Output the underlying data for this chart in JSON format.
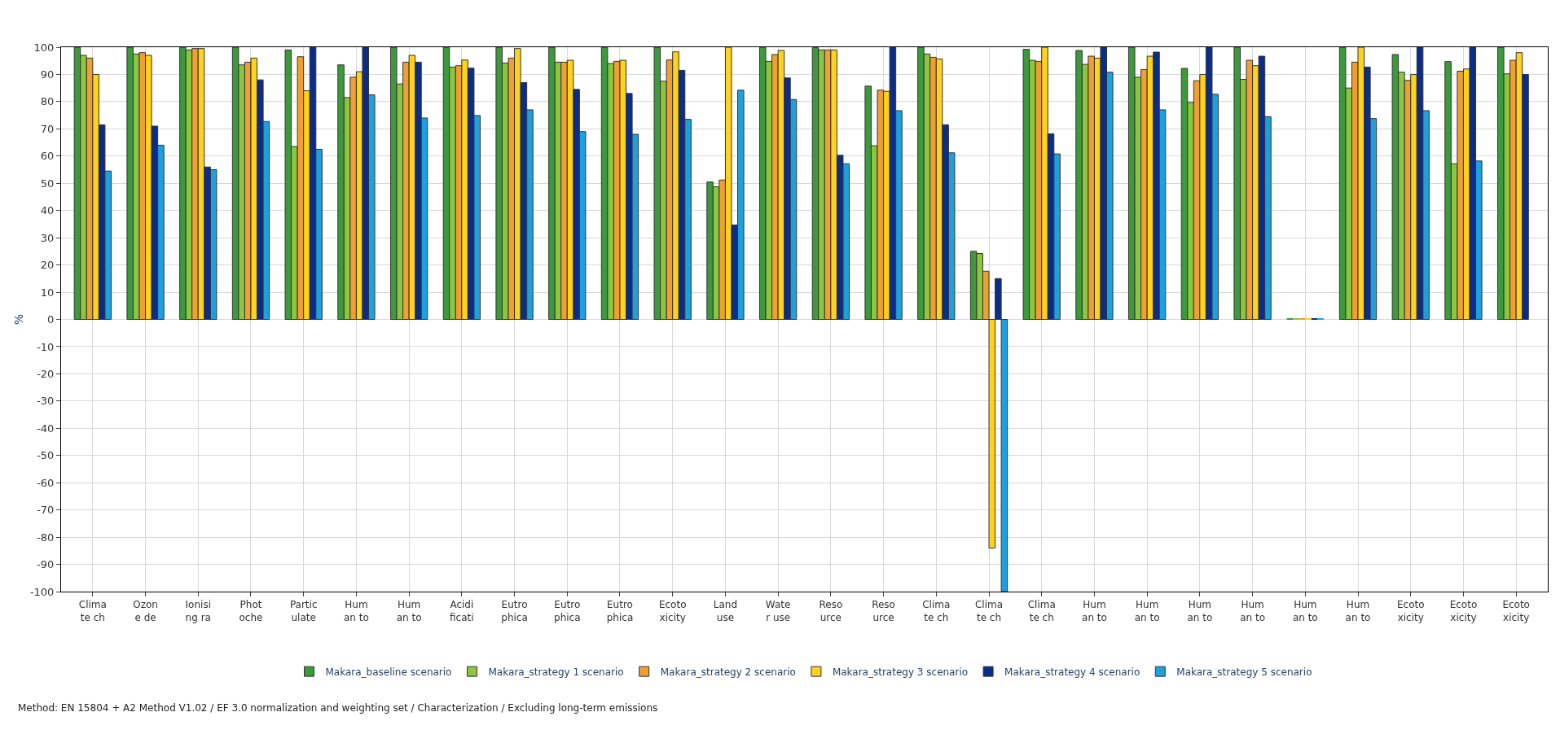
{
  "chart_data": {
    "type": "bar",
    "ylabel": "%",
    "categories": [
      "Clima te ch",
      "Ozon e de",
      "Ionisi ng ra",
      "Phot oche",
      "Partic ulate",
      "Hum an to",
      "Hum an to",
      "Acidi ficati",
      "Eutro phica",
      "Eutro phica",
      "Eutro phica",
      "Ecoto xicity",
      "Land use",
      "Wate r use",
      "Reso urce",
      "Reso urce",
      "Clima te ch",
      "Clima te ch",
      "Clima te ch",
      "Hum an to",
      "Hum an to",
      "Hum an to",
      "Hum an to",
      "Hum an to",
      "Hum an to",
      "Ecoto xicity",
      "Ecoto xicity",
      "Ecoto xicity"
    ],
    "series": [
      {
        "name": "Makara_baseline scenario",
        "color": "#3c9a3c",
        "values": [
          100,
          100,
          100,
          100,
          99,
          93.5,
          100,
          100,
          100,
          100,
          100,
          100,
          50.5,
          100,
          99.8,
          85.7,
          100,
          25,
          99.2,
          98.8,
          100,
          92.2,
          100,
          0.3,
          100,
          97.3,
          94.7,
          100
        ]
      },
      {
        "name": "Makara_strategy 1 scenario",
        "color": "#8cc63f",
        "values": [
          97,
          97.5,
          99,
          93.5,
          63.5,
          81.5,
          86.5,
          92.7,
          94.2,
          94.5,
          94,
          87.5,
          48.7,
          94.8,
          99,
          63.8,
          97.5,
          24.2,
          95.2,
          93.7,
          89,
          79.7,
          88.2,
          0.3,
          85,
          90.8,
          57.2,
          90.2
        ]
      },
      {
        "name": "Makara_strategy 2 scenario",
        "color": "#f0a030",
        "values": [
          96,
          98,
          99.5,
          94.5,
          96.5,
          89,
          94.5,
          93.2,
          96,
          94.5,
          94.8,
          95.3,
          51.2,
          97.3,
          99,
          84.2,
          96.3,
          17.7,
          94.8,
          96.7,
          91.8,
          87.7,
          95.2,
          0.3,
          94.5,
          87.8,
          91.2,
          95.2
        ]
      },
      {
        "name": "Makara_strategy 3 scenario",
        "color": "#ffd21e",
        "values": [
          90,
          97,
          99.5,
          96,
          84,
          91,
          97,
          95.3,
          99.5,
          95.2,
          95.2,
          98.3,
          100,
          98.8,
          99,
          83.8,
          95.7,
          -84,
          100,
          96,
          96.7,
          90,
          93.2,
          0.3,
          100,
          90,
          92,
          98
        ]
      },
      {
        "name": "Makara_strategy 4 scenario",
        "color": "#0a2d8c",
        "values": [
          71.5,
          71,
          56,
          88,
          100,
          100,
          94.5,
          92.3,
          87,
          84.5,
          83,
          91.5,
          34.7,
          88.7,
          60.3,
          100,
          71.5,
          15,
          68.2,
          100,
          98.2,
          100,
          96.7,
          0.3,
          92.7,
          100,
          100,
          90
        ]
      },
      {
        "name": "Makara_strategy 5 scenario",
        "color": "#1ea0dc",
        "values": [
          54.5,
          64,
          55,
          72.7,
          62.5,
          82.5,
          74,
          74.9,
          77,
          69,
          68,
          73.5,
          84.2,
          80.8,
          57.2,
          76.7,
          61.2,
          -100,
          60.8,
          90.8,
          77,
          82.7,
          74.5,
          0.3,
          73.8,
          76.7,
          58.2,
          null
        ]
      }
    ],
    "ylim": [
      -100,
      100
    ],
    "yticks": [
      -100,
      -90,
      -80,
      -70,
      -60,
      -50,
      -40,
      -30,
      -20,
      -10,
      0,
      10,
      20,
      30,
      40,
      50,
      60,
      70,
      80,
      90,
      100
    ],
    "grid": true,
    "legend": "bottom",
    "annotations": [
      "Method: EN 15804 + A2 Method V1.02 / EF 3.0 normalization and weighting set / Characterization / Excluding long-term emissions"
    ]
  }
}
